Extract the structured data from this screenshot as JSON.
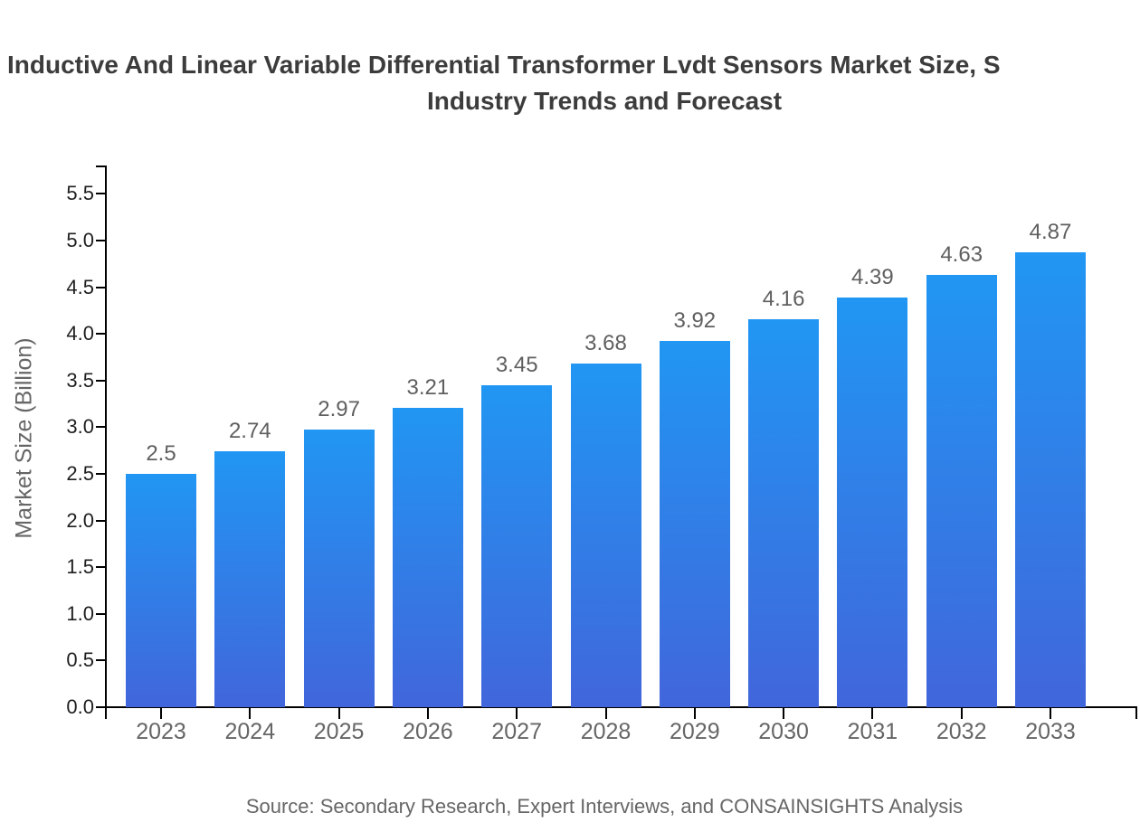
{
  "title": {
    "line1": "Inductive And Linear Variable Differential Transformer Lvdt Sensors Market Size, S",
    "line2": "Industry Trends and Forecast"
  },
  "source": "Source: Secondary Research, Expert Interviews, and CONSAINSIGHTS Analysis",
  "chart_data": {
    "type": "bar",
    "categories": [
      "2023",
      "2024",
      "2025",
      "2026",
      "2027",
      "2028",
      "2029",
      "2030",
      "2031",
      "2032",
      "2033"
    ],
    "values": [
      2.5,
      2.74,
      2.97,
      3.21,
      3.45,
      3.68,
      3.92,
      4.16,
      4.39,
      4.63,
      4.87
    ],
    "value_labels": [
      "2.5",
      "2.74",
      "2.97",
      "3.21",
      "3.45",
      "3.68",
      "3.92",
      "4.16",
      "4.39",
      "4.63",
      "4.87"
    ],
    "title": "Inductive And Linear Variable Differential Transformer Lvdt Sensors Market Size, Industry Trends and Forecast",
    "xlabel": "",
    "ylabel": "Market Size (Billion)",
    "ylim": [
      0,
      5.8
    ],
    "yticks": [
      "0.0",
      "0.5",
      "1.0",
      "1.5",
      "2.0",
      "2.5",
      "3.0",
      "3.5",
      "4.0",
      "4.5",
      "5.0",
      "5.5"
    ],
    "grid": false,
    "legend": "none",
    "colors": {
      "bar_gradient_top": "#2196F3",
      "bar_gradient_bottom": "#4166DB",
      "axis": "#000000",
      "ytick_label": "#1f1f1f",
      "xtick_label": "#666666",
      "value_label": "#5f5f5f",
      "axis_title": "#666666",
      "title_text": "#3c3c3c",
      "source_text": "#666666"
    }
  }
}
